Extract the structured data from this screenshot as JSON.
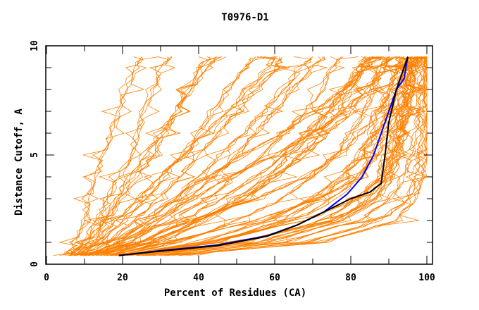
{
  "chart_data": {
    "type": "line",
    "title": "T0976-D1",
    "xlabel": "Percent of Residues (CA)",
    "ylabel": "Distance Cutoff, A",
    "xlim": [
      0,
      100
    ],
    "ylim": [
      0,
      10
    ],
    "x_ticks": [
      "0",
      "20",
      "40",
      "60",
      "80",
      "100"
    ],
    "y_ticks": [
      "0",
      "5",
      "10"
    ],
    "grid": false,
    "colors": {
      "models": "#ff8000",
      "highlight_blue": "#0000ff",
      "highlight_black": "#000000"
    },
    "cutoff_levels": [
      0.4,
      1,
      2,
      3,
      4,
      5,
      6,
      7,
      8,
      9,
      9.5
    ],
    "model_series": [
      [
        5,
        8,
        10,
        11,
        13,
        15,
        17,
        19,
        21,
        23,
        25
      ],
      [
        6,
        10,
        13,
        16,
        19,
        22,
        24,
        26,
        28,
        30,
        33
      ],
      [
        7,
        12,
        16,
        20,
        24,
        28,
        31,
        34,
        37,
        40,
        43
      ],
      [
        8,
        14,
        20,
        26,
        31,
        36,
        40,
        44,
        48,
        52,
        55
      ],
      [
        10,
        18,
        26,
        33,
        40,
        46,
        52,
        57,
        62,
        67,
        70
      ],
      [
        12,
        22,
        32,
        42,
        50,
        57,
        63,
        68,
        72,
        75,
        78
      ],
      [
        15,
        28,
        40,
        52,
        60,
        67,
        72,
        77,
        80,
        83,
        85
      ],
      [
        18,
        35,
        50,
        62,
        70,
        76,
        80,
        84,
        86,
        88,
        90
      ],
      [
        20,
        40,
        58,
        70,
        77,
        82,
        85,
        88,
        90,
        92,
        93
      ],
      [
        22,
        45,
        65,
        76,
        82,
        86,
        88,
        90,
        92,
        94,
        95
      ],
      [
        25,
        52,
        72,
        82,
        87,
        89,
        91,
        93,
        94,
        95,
        96
      ],
      [
        28,
        58,
        78,
        87,
        91,
        93,
        94,
        95,
        96,
        97,
        98
      ],
      [
        30,
        62,
        82,
        90,
        94,
        96,
        97,
        98,
        98,
        99,
        99
      ],
      [
        33,
        68,
        88,
        95,
        97,
        98,
        99,
        99,
        100,
        100,
        100
      ],
      [
        35,
        72,
        92,
        97,
        99,
        100,
        100,
        100,
        100,
        100,
        100
      ],
      [
        9,
        16,
        23,
        29,
        35,
        40,
        45,
        50,
        55,
        60,
        62
      ],
      [
        11,
        20,
        29,
        37,
        44,
        50,
        55,
        60,
        65,
        70,
        73
      ],
      [
        14,
        25,
        36,
        46,
        55,
        62,
        68,
        74,
        79,
        83,
        86
      ],
      [
        13,
        24,
        38,
        55,
        68,
        77,
        83,
        87,
        90,
        92,
        94
      ],
      [
        16,
        32,
        55,
        72,
        82,
        87,
        90,
        92,
        94,
        96,
        97
      ],
      [
        20,
        42,
        68,
        82,
        88,
        91,
        93,
        95,
        96,
        97,
        98
      ],
      [
        24,
        50,
        75,
        86,
        90,
        92,
        93,
        94,
        95,
        96,
        97
      ],
      [
        12,
        22,
        30,
        38,
        48,
        60,
        70,
        78,
        84,
        88,
        90
      ],
      [
        17,
        30,
        42,
        52,
        60,
        68,
        74,
        80,
        85,
        89,
        91
      ],
      [
        6,
        11,
        15,
        18,
        22,
        26,
        30,
        34,
        38,
        42,
        46
      ],
      [
        14,
        27,
        40,
        50,
        58,
        64,
        70,
        74,
        78,
        82,
        84
      ],
      [
        26,
        55,
        76,
        85,
        89,
        91,
        92,
        94,
        95,
        96,
        97
      ],
      [
        21,
        44,
        62,
        72,
        78,
        83,
        87,
        90,
        92,
        94,
        95
      ],
      [
        10,
        19,
        27,
        34,
        42,
        52,
        62,
        70,
        78,
        84,
        88
      ],
      [
        8,
        13,
        18,
        24,
        30,
        36,
        42,
        48,
        53,
        58,
        60
      ]
    ],
    "highlight_series": [
      {
        "name": "blue",
        "points": [
          [
            19,
            0.4
          ],
          [
            30,
            0.62
          ],
          [
            45,
            0.88
          ],
          [
            58,
            1.3
          ],
          [
            66,
            1.8
          ],
          [
            73,
            2.4
          ],
          [
            79,
            3.2
          ],
          [
            83,
            4.0
          ],
          [
            86,
            5.0
          ],
          [
            88,
            6.0
          ],
          [
            90,
            7.0
          ],
          [
            92,
            8.0
          ],
          [
            94,
            8.5
          ],
          [
            95,
            9.5
          ]
        ]
      },
      {
        "name": "black",
        "points": [
          [
            19,
            0.4
          ],
          [
            30,
            0.6
          ],
          [
            45,
            0.85
          ],
          [
            58,
            1.28
          ],
          [
            66,
            1.8
          ],
          [
            73,
            2.4
          ],
          [
            80,
            3.0
          ],
          [
            85,
            3.3
          ],
          [
            88,
            3.7
          ],
          [
            89,
            5.0
          ],
          [
            90,
            6.5
          ],
          [
            92,
            8.0
          ],
          [
            93,
            8.5
          ],
          [
            95,
            9.5
          ]
        ]
      }
    ]
  }
}
